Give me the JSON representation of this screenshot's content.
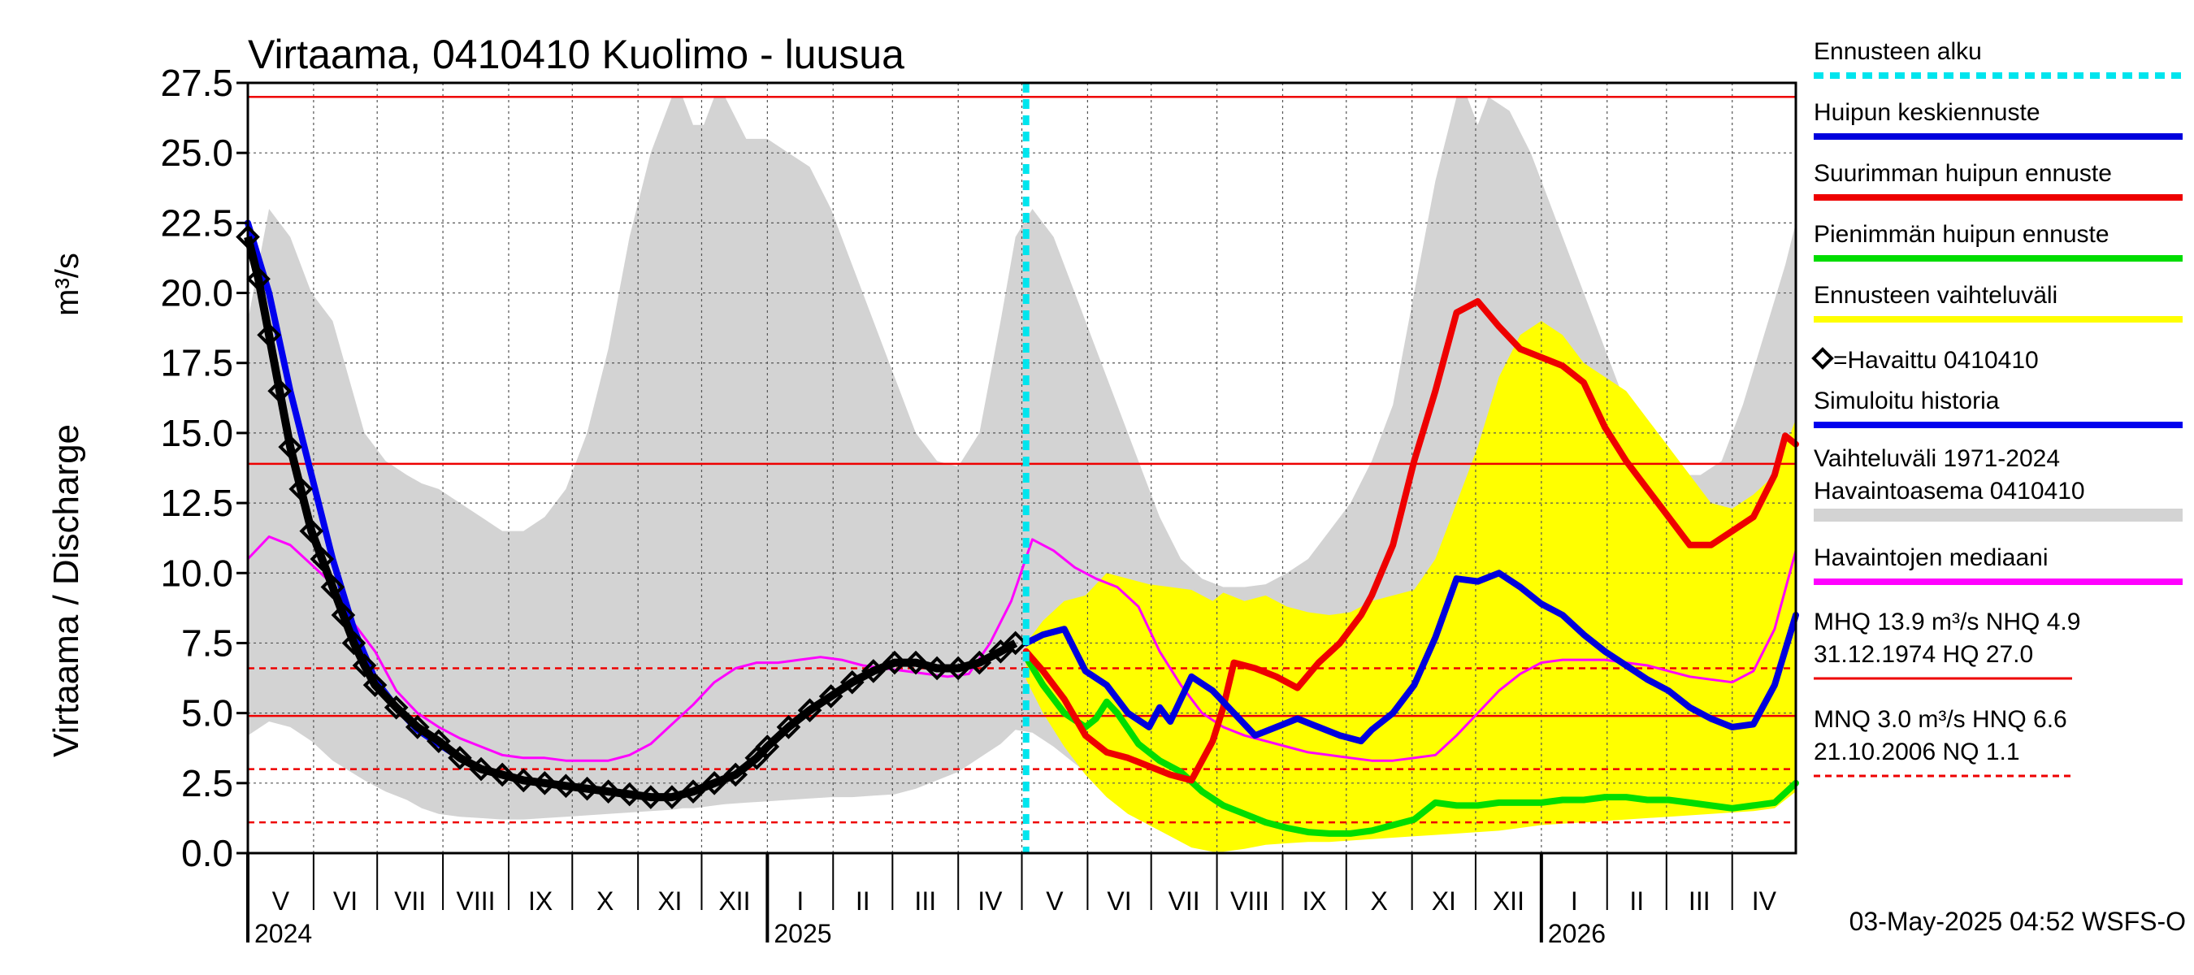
{
  "chart_data": {
    "type": "line",
    "title": "Virtaama, 0410410 Kuolimo - luusua",
    "ylabel": "Virtaama / Discharge",
    "yunit": "m³/s",
    "ylim": [
      0,
      27.5
    ],
    "yticks": [
      0.0,
      2.5,
      5.0,
      7.5,
      10.0,
      12.5,
      15.0,
      17.5,
      20.0,
      22.5,
      25.0,
      27.5
    ],
    "x_range_days": [
      0,
      730
    ],
    "months": [
      {
        "label": "V",
        "start": 0
      },
      {
        "label": "VI",
        "start": 31
      },
      {
        "label": "VII",
        "start": 61
      },
      {
        "label": "VIII",
        "start": 92
      },
      {
        "label": "IX",
        "start": 123
      },
      {
        "label": "X",
        "start": 153
      },
      {
        "label": "XI",
        "start": 184
      },
      {
        "label": "XII",
        "start": 214
      },
      {
        "label": "I",
        "start": 245
      },
      {
        "label": "II",
        "start": 276
      },
      {
        "label": "III",
        "start": 304
      },
      {
        "label": "IV",
        "start": 335
      },
      {
        "label": "V",
        "start": 365
      },
      {
        "label": "VI",
        "start": 396
      },
      {
        "label": "VII",
        "start": 426
      },
      {
        "label": "VIII",
        "start": 457
      },
      {
        "label": "IX",
        "start": 488
      },
      {
        "label": "X",
        "start": 518
      },
      {
        "label": "XI",
        "start": 549
      },
      {
        "label": "XII",
        "start": 579
      },
      {
        "label": "I",
        "start": 610
      },
      {
        "label": "II",
        "start": 641
      },
      {
        "label": "III",
        "start": 669
      },
      {
        "label": "IV",
        "start": 700
      }
    ],
    "years": [
      {
        "label": "2024",
        "day": 0
      },
      {
        "label": "2025",
        "day": 245
      },
      {
        "label": "2026",
        "day": 610
      }
    ],
    "forecast_start_day": 367,
    "reference_lines": [
      {
        "name": "HQ",
        "value": 27.0,
        "style": "solid"
      },
      {
        "name": "MHQ",
        "value": 13.9,
        "style": "solid"
      },
      {
        "name": "NHQ",
        "value": 4.9,
        "style": "solid"
      },
      {
        "name": "HNQ",
        "value": 6.6,
        "style": "dashed"
      },
      {
        "name": "MNQ",
        "value": 3.0,
        "style": "dashed"
      },
      {
        "name": "NQ",
        "value": 1.1,
        "style": "dashed"
      }
    ],
    "historical_range": {
      "name": "Vaihteluväli 1971-2024",
      "x": [
        0,
        10,
        20,
        30,
        40,
        55,
        65,
        75,
        82,
        90,
        100,
        110,
        120,
        130,
        140,
        150,
        160,
        170,
        180,
        190,
        200,
        205,
        210,
        215,
        220,
        225,
        235,
        245,
        255,
        265,
        275,
        285,
        295,
        305,
        315,
        325,
        335,
        345,
        355,
        362,
        370,
        380,
        390,
        400,
        410,
        420,
        430,
        440,
        450,
        460,
        470,
        480,
        490,
        500,
        510,
        520,
        530,
        540,
        550,
        560,
        570,
        575,
        580,
        585,
        595,
        605,
        615,
        625,
        635,
        645,
        655,
        665,
        675,
        685,
        695,
        705,
        715,
        725,
        730
      ],
      "upper": [
        19,
        23,
        22,
        20,
        19,
        15,
        14,
        13.5,
        13.2,
        13,
        12.5,
        12,
        11.5,
        11.5,
        12,
        13,
        15,
        18,
        22,
        25,
        27,
        27,
        26,
        26,
        27,
        27,
        25.5,
        25.5,
        25,
        24.5,
        23,
        21,
        19,
        17,
        15,
        14,
        13.8,
        15,
        19,
        22,
        23,
        22,
        20,
        18,
        16,
        14,
        12,
        10.5,
        9.8,
        9.5,
        9.5,
        9.6,
        10,
        10.5,
        11.5,
        12.5,
        14,
        16,
        20,
        24,
        27,
        27,
        26,
        27,
        26.5,
        25,
        23,
        21,
        19,
        17,
        15,
        14,
        13.5,
        13.5,
        14,
        16,
        18.5,
        21,
        22.5
      ],
      "lower": [
        4.2,
        4.7,
        4.5,
        4.0,
        3.3,
        2.6,
        2.2,
        1.9,
        1.6,
        1.4,
        1.3,
        1.25,
        1.2,
        1.2,
        1.25,
        1.3,
        1.35,
        1.4,
        1.45,
        1.5,
        1.55,
        1.6,
        1.6,
        1.65,
        1.7,
        1.75,
        1.8,
        1.85,
        1.9,
        1.95,
        2.0,
        2.0,
        2.05,
        2.1,
        2.3,
        2.6,
        2.9,
        3.4,
        3.9,
        4.4,
        4.3,
        3.8,
        3.2,
        2.6,
        2.1,
        1.75,
        1.5,
        1.35,
        1.25,
        1.2,
        1.15,
        1.15,
        1.1,
        1.1,
        1.1,
        1.15,
        1.2,
        1.3,
        1.35,
        1.4,
        1.45,
        1.5,
        1.55,
        1.6,
        1.65,
        1.7,
        1.75,
        1.8,
        1.85,
        1.9,
        1.95,
        2.0,
        2.0,
        2.05,
        2.1,
        2.3,
        2.8,
        3.3,
        3.8
      ]
    },
    "forecast_range": {
      "name": "Ennusteen vaihteluväli",
      "x": [
        367,
        375,
        385,
        395,
        405,
        415,
        425,
        435,
        445,
        455,
        460,
        470,
        480,
        490,
        500,
        510,
        520,
        530,
        540,
        550,
        560,
        570,
        580,
        590,
        600,
        610,
        620,
        630,
        640,
        650,
        660,
        670,
        680,
        690,
        700,
        710,
        720,
        730
      ],
      "upper": [
        7.5,
        8.3,
        9.0,
        9.2,
        10.0,
        9.8,
        9.6,
        9.5,
        9.4,
        9.0,
        9.3,
        9.0,
        9.2,
        8.8,
        8.6,
        8.5,
        8.6,
        9.0,
        9.2,
        9.4,
        10.5,
        12.5,
        14.5,
        17.0,
        18.5,
        19.0,
        18.5,
        17.5,
        17.0,
        16.5,
        15.5,
        14.5,
        13.5,
        12.5,
        12.3,
        12.8,
        13.5,
        15.5
      ],
      "lower": [
        6.2,
        5.0,
        3.8,
        2.8,
        2.0,
        1.4,
        1.0,
        0.6,
        0.2,
        0.05,
        0.05,
        0.15,
        0.3,
        0.35,
        0.4,
        0.4,
        0.45,
        0.5,
        0.55,
        0.6,
        0.65,
        0.7,
        0.75,
        0.8,
        0.9,
        1.0,
        1.05,
        1.1,
        1.15,
        1.2,
        1.25,
        1.3,
        1.35,
        1.4,
        1.45,
        1.5,
        1.6,
        2.2
      ]
    },
    "series": [
      {
        "name": "Havaittu 0410410",
        "color": "#000000",
        "marker": "diamond",
        "x": [
          0,
          5,
          10,
          15,
          20,
          25,
          30,
          35,
          40,
          45,
          50,
          55,
          60,
          70,
          80,
          90,
          100,
          110,
          120,
          130,
          140,
          150,
          160,
          170,
          180,
          190,
          200,
          210,
          220,
          230,
          240,
          245,
          255,
          265,
          275,
          285,
          295,
          305,
          315,
          325,
          335,
          345,
          355,
          362
        ],
        "y": [
          22.0,
          20.5,
          18.5,
          16.5,
          14.5,
          13.0,
          11.5,
          10.5,
          9.5,
          8.5,
          7.5,
          6.7,
          6.0,
          5.2,
          4.5,
          4.0,
          3.4,
          3.0,
          2.8,
          2.6,
          2.5,
          2.4,
          2.3,
          2.2,
          2.1,
          2.0,
          2.0,
          2.2,
          2.5,
          2.8,
          3.4,
          3.8,
          4.5,
          5.1,
          5.6,
          6.1,
          6.5,
          6.8,
          6.8,
          6.6,
          6.6,
          6.8,
          7.2,
          7.5
        ]
      },
      {
        "name": "Simuloitu historia",
        "color": "#0000ee",
        "x": [
          0,
          10,
          20,
          30,
          40,
          50,
          60,
          70,
          80,
          90,
          100
        ],
        "y": [
          22.5,
          20.0,
          16.5,
          13.5,
          10.5,
          8.0,
          6.2,
          5.2,
          4.4,
          3.9,
          3.4
        ]
      },
      {
        "name": "Havaintojen mediaani",
        "color": "#ff00ff",
        "x": [
          0,
          10,
          20,
          30,
          40,
          50,
          60,
          70,
          80,
          90,
          100,
          110,
          120,
          130,
          140,
          150,
          160,
          170,
          180,
          190,
          200,
          210,
          220,
          230,
          240,
          250,
          260,
          270,
          280,
          290,
          300,
          310,
          320,
          330,
          340,
          350,
          360,
          370,
          380,
          390,
          400,
          410,
          420,
          430,
          440,
          450,
          460,
          470,
          480,
          490,
          500,
          510,
          520,
          530,
          540,
          550,
          560,
          570,
          580,
          590,
          600,
          610,
          620,
          630,
          640,
          650,
          660,
          670,
          680,
          690,
          700,
          710,
          720,
          730
        ],
        "y": [
          10.5,
          11.3,
          11.0,
          10.3,
          9.6,
          8.2,
          7.2,
          5.8,
          5.0,
          4.5,
          4.1,
          3.8,
          3.5,
          3.4,
          3.4,
          3.3,
          3.3,
          3.3,
          3.5,
          3.9,
          4.6,
          5.3,
          6.1,
          6.6,
          6.8,
          6.8,
          6.9,
          7.0,
          6.9,
          6.7,
          6.6,
          6.5,
          6.4,
          6.3,
          6.4,
          7.5,
          9.0,
          11.2,
          10.8,
          10.2,
          9.8,
          9.5,
          8.8,
          7.2,
          6.0,
          5.0,
          4.5,
          4.2,
          4.0,
          3.8,
          3.6,
          3.5,
          3.4,
          3.3,
          3.3,
          3.4,
          3.5,
          4.2,
          5.0,
          5.8,
          6.4,
          6.8,
          6.9,
          6.9,
          6.9,
          6.8,
          6.7,
          6.5,
          6.3,
          6.2,
          6.1,
          6.5,
          8.0,
          10.8
        ]
      },
      {
        "name": "Huipun keskiennuste",
        "color": "#0000dd",
        "x": [
          367,
          375,
          385,
          395,
          405,
          415,
          425,
          430,
          435,
          445,
          455,
          465,
          475,
          485,
          495,
          505,
          515,
          525,
          530,
          540,
          550,
          560,
          570,
          580,
          590,
          600,
          610,
          620,
          630,
          640,
          650,
          660,
          670,
          680,
          690,
          700,
          710,
          720,
          730
        ],
        "y": [
          7.5,
          7.8,
          8.0,
          6.5,
          6.0,
          5.0,
          4.5,
          5.2,
          4.7,
          6.3,
          5.8,
          5.0,
          4.2,
          4.5,
          4.8,
          4.5,
          4.2,
          4.0,
          4.4,
          5.0,
          6.0,
          7.7,
          9.8,
          9.7,
          10.0,
          9.5,
          8.9,
          8.5,
          7.8,
          7.2,
          6.7,
          6.2,
          5.8,
          5.2,
          4.8,
          4.5,
          4.6,
          6.0,
          8.5
        ]
      },
      {
        "name": "Suurimman huipun ennuste",
        "color": "#ee0000",
        "x": [
          367,
          375,
          385,
          395,
          405,
          415,
          425,
          435,
          445,
          455,
          460,
          465,
          475,
          485,
          495,
          505,
          515,
          525,
          530,
          540,
          550,
          560,
          570,
          580,
          590,
          600,
          610,
          620,
          630,
          640,
          650,
          660,
          670,
          680,
          690,
          700,
          710,
          720,
          725,
          730
        ],
        "y": [
          7.2,
          6.5,
          5.5,
          4.2,
          3.6,
          3.4,
          3.1,
          2.8,
          2.6,
          4.0,
          5.2,
          6.8,
          6.6,
          6.3,
          5.9,
          6.8,
          7.5,
          8.5,
          9.2,
          11.0,
          14.0,
          16.5,
          19.3,
          19.7,
          18.8,
          18.0,
          17.7,
          17.4,
          16.8,
          15.2,
          14.0,
          13.0,
          12.0,
          11.0,
          11.0,
          11.5,
          12.0,
          13.5,
          14.9,
          14.6
        ]
      },
      {
        "name": "Pienimmän huipun ennuste",
        "color": "#00dd00",
        "x": [
          367,
          375,
          385,
          395,
          400,
          405,
          410,
          420,
          430,
          440,
          450,
          460,
          470,
          480,
          490,
          500,
          510,
          520,
          530,
          540,
          550,
          560,
          570,
          580,
          590,
          600,
          610,
          620,
          630,
          640,
          650,
          660,
          670,
          680,
          690,
          700,
          710,
          720,
          730
        ],
        "y": [
          7.0,
          6.0,
          5.0,
          4.5,
          4.8,
          5.4,
          5.0,
          3.9,
          3.3,
          2.9,
          2.2,
          1.7,
          1.4,
          1.1,
          0.9,
          0.75,
          0.7,
          0.7,
          0.8,
          1.0,
          1.2,
          1.8,
          1.7,
          1.7,
          1.8,
          1.8,
          1.8,
          1.9,
          1.9,
          2.0,
          2.0,
          1.9,
          1.9,
          1.8,
          1.7,
          1.6,
          1.7,
          1.8,
          2.5
        ]
      }
    ],
    "legend": {
      "placement": "right",
      "entries": [
        {
          "label": "Ennusteen alku",
          "color": "#00e5ee",
          "style": "dashed"
        },
        {
          "label": "Huipun keskiennuste",
          "color": "#0000dd",
          "style": "line"
        },
        {
          "label": "Suurimman huipun ennuste",
          "color": "#ee0000",
          "style": "line"
        },
        {
          "label": "Pienimmän huipun ennuste",
          "color": "#00dd00",
          "style": "line"
        },
        {
          "label": "Ennusteen vaihteluväli",
          "color": "#ffff00",
          "style": "line"
        },
        {
          "label": "=Havaittu 0410410",
          "color": "#000000",
          "style": "marker"
        },
        {
          "label": "Simuloitu historia",
          "color": "#0000ee",
          "style": "line"
        },
        {
          "label": "Vaihteluväli 1971-2024",
          "label2": " Havaintoasema 0410410",
          "color": "#d3d3d3",
          "style": "band"
        },
        {
          "label": "Havaintojen mediaani",
          "color": "#ff00ff",
          "style": "line"
        }
      ],
      "stats": [
        {
          "line1": "MHQ 13.9 m³/s NHQ  4.9",
          "line2": "31.12.1974 HQ 27.0",
          "color": "#ee0000",
          "style": "solid"
        },
        {
          "line1": "MNQ  3.0 m³/s HNQ  6.6",
          "line2": "21.10.2006 NQ  1.1",
          "color": "#ee0000",
          "style": "dashed"
        }
      ]
    },
    "footer": "03-May-2025 04:52 WSFS-O"
  }
}
